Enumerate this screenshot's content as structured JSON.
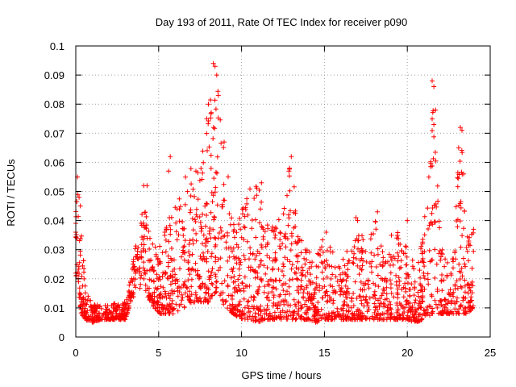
{
  "chart_data": {
    "type": "scatter",
    "title": "Day 193 of 2011, Rate Of TEC Index for receiver p090",
    "xlabel": "GPS time / hours",
    "ylabel": "ROTI / TECUs",
    "xlim": [
      0,
      25
    ],
    "ylim": [
      0,
      0.1
    ],
    "x_ticks": [
      0,
      5,
      10,
      15,
      20,
      25
    ],
    "x_tick_labels": [
      "0",
      "5",
      "10",
      "15",
      "20",
      "25"
    ],
    "y_ticks": [
      0,
      0.01,
      0.02,
      0.03,
      0.04,
      0.05,
      0.06,
      0.07,
      0.08,
      0.09,
      0.1
    ],
    "y_tick_labels": [
      "0",
      "0.01",
      "0.02",
      "0.03",
      "0.04",
      "0.05",
      "0.06",
      "0.07",
      "0.08",
      "0.09",
      "0.1"
    ],
    "grid": true,
    "marker": "+",
    "color": "#ff0000",
    "envelope": [
      [
        0.0,
        0.022,
        0.055
      ],
      [
        0.3,
        0.008,
        0.045
      ],
      [
        0.6,
        0.006,
        0.016
      ],
      [
        1.0,
        0.005,
        0.012
      ],
      [
        1.5,
        0.006,
        0.011
      ],
      [
        2.0,
        0.006,
        0.011
      ],
      [
        2.5,
        0.006,
        0.012
      ],
      [
        3.0,
        0.006,
        0.012
      ],
      [
        3.3,
        0.012,
        0.02
      ],
      [
        3.7,
        0.015,
        0.035
      ],
      [
        4.0,
        0.018,
        0.052
      ],
      [
        4.5,
        0.012,
        0.035
      ],
      [
        5.0,
        0.008,
        0.03
      ],
      [
        5.5,
        0.008,
        0.04
      ],
      [
        6.0,
        0.008,
        0.045
      ],
      [
        6.5,
        0.01,
        0.055
      ],
      [
        7.0,
        0.012,
        0.06
      ],
      [
        7.5,
        0.012,
        0.065
      ],
      [
        8.0,
        0.012,
        0.075
      ],
      [
        8.3,
        0.015,
        0.094
      ],
      [
        8.6,
        0.015,
        0.085
      ],
      [
        9.0,
        0.01,
        0.065
      ],
      [
        9.5,
        0.008,
        0.04
      ],
      [
        10.0,
        0.006,
        0.045
      ],
      [
        10.5,
        0.006,
        0.055
      ],
      [
        11.0,
        0.005,
        0.052
      ],
      [
        11.5,
        0.006,
        0.045
      ],
      [
        12.0,
        0.006,
        0.04
      ],
      [
        12.5,
        0.006,
        0.045
      ],
      [
        13.0,
        0.006,
        0.062
      ],
      [
        13.5,
        0.006,
        0.04
      ],
      [
        14.0,
        0.006,
        0.03
      ],
      [
        14.5,
        0.005,
        0.03
      ],
      [
        15.0,
        0.006,
        0.036
      ],
      [
        15.5,
        0.006,
        0.03
      ],
      [
        16.0,
        0.006,
        0.028
      ],
      [
        16.5,
        0.006,
        0.03
      ],
      [
        17.0,
        0.006,
        0.04
      ],
      [
        17.5,
        0.006,
        0.032
      ],
      [
        18.0,
        0.006,
        0.042
      ],
      [
        18.5,
        0.006,
        0.03
      ],
      [
        19.0,
        0.006,
        0.035
      ],
      [
        19.5,
        0.006,
        0.04
      ],
      [
        20.0,
        0.006,
        0.03
      ],
      [
        20.5,
        0.005,
        0.025
      ],
      [
        21.0,
        0.006,
        0.04
      ],
      [
        21.5,
        0.008,
        0.088
      ],
      [
        22.0,
        0.008,
        0.035
      ],
      [
        22.5,
        0.008,
        0.025
      ],
      [
        23.0,
        0.008,
        0.055
      ],
      [
        23.3,
        0.008,
        0.072
      ],
      [
        23.6,
        0.008,
        0.04
      ],
      [
        24.0,
        0.01,
        0.036
      ]
    ],
    "spikes": [
      [
        0.1,
        0.055
      ],
      [
        0.2,
        0.048
      ],
      [
        0.0,
        0.036
      ],
      [
        4.1,
        0.052
      ],
      [
        4.3,
        0.052
      ],
      [
        5.7,
        0.062
      ],
      [
        5.6,
        0.057
      ],
      [
        8.3,
        0.094
      ],
      [
        8.4,
        0.093
      ],
      [
        8.5,
        0.09
      ],
      [
        8.0,
        0.08
      ],
      [
        8.6,
        0.083
      ],
      [
        7.9,
        0.075
      ],
      [
        13.0,
        0.062
      ],
      [
        12.9,
        0.058
      ],
      [
        11.2,
        0.053
      ],
      [
        21.5,
        0.088
      ],
      [
        21.6,
        0.086
      ],
      [
        21.7,
        0.078
      ],
      [
        21.6,
        0.073
      ],
      [
        23.2,
        0.072
      ],
      [
        23.3,
        0.071
      ],
      [
        23.1,
        0.065
      ],
      [
        23.4,
        0.056
      ],
      [
        16.9,
        0.041
      ],
      [
        17.0,
        0.04
      ],
      [
        18.2,
        0.043
      ],
      [
        20.0,
        0.04
      ],
      [
        24.0,
        0.037
      ],
      [
        15.1,
        0.036
      ]
    ]
  }
}
